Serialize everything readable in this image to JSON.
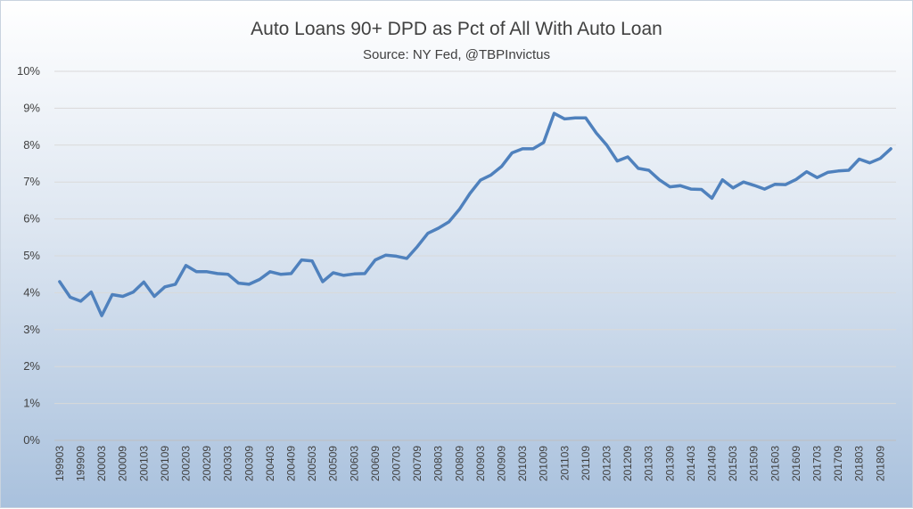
{
  "chart_data": {
    "type": "line",
    "title": "Auto Loans 90+ DPD as Pct of All With Auto Loan",
    "subtitle": "Source: NY Fed, @TBPInvictus",
    "xlabel": "",
    "ylabel": "",
    "ylim": [
      0,
      10
    ],
    "yticks": [
      "0%",
      "1%",
      "2%",
      "3%",
      "4%",
      "5%",
      "6%",
      "7%",
      "8%",
      "9%",
      "10%"
    ],
    "xticks": [
      "199903",
      "199909",
      "200003",
      "200009",
      "200103",
      "200109",
      "200203",
      "200209",
      "200303",
      "200309",
      "200403",
      "200409",
      "200503",
      "200509",
      "200603",
      "200609",
      "200703",
      "200709",
      "200803",
      "200809",
      "200903",
      "200909",
      "201003",
      "201009",
      "201103",
      "201109",
      "201203",
      "201209",
      "201303",
      "201309",
      "201403",
      "201409",
      "201503",
      "201509",
      "201603",
      "201609",
      "201703",
      "201709",
      "201803",
      "201809"
    ],
    "grid": true,
    "legend": "none",
    "colors": {
      "line": "#4f81bd",
      "grid": "#d9d9d9"
    },
    "series": [
      {
        "x": [
          "199903",
          "199906",
          "199909",
          "199912",
          "200003",
          "200006",
          "200009",
          "200012",
          "200103",
          "200106",
          "200109",
          "200112",
          "200203",
          "200206",
          "200209",
          "200212",
          "200303",
          "200306",
          "200309",
          "200312",
          "200403",
          "200406",
          "200409",
          "200412",
          "200503",
          "200506",
          "200509",
          "200512",
          "200603",
          "200606",
          "200609",
          "200612",
          "200703",
          "200706",
          "200709",
          "200712",
          "200803",
          "200806",
          "200809",
          "200812",
          "200903",
          "200906",
          "200909",
          "200912",
          "201003",
          "201006",
          "201009",
          "201012",
          "201103",
          "201106",
          "201109",
          "201112",
          "201203",
          "201206",
          "201209",
          "201212",
          "201303",
          "201306",
          "201309",
          "201312",
          "201403",
          "201406",
          "201409",
          "201412",
          "201503",
          "201506",
          "201509",
          "201512",
          "201603",
          "201606",
          "201609",
          "201612",
          "201703",
          "201706",
          "201709",
          "201712",
          "201803",
          "201806",
          "201809",
          "201812"
        ],
        "values": [
          4.3,
          3.88,
          3.77,
          4.02,
          3.38,
          3.95,
          3.9,
          4.02,
          4.29,
          3.9,
          4.16,
          4.23,
          4.74,
          4.57,
          4.57,
          4.52,
          4.5,
          4.26,
          4.23,
          4.36,
          4.57,
          4.5,
          4.52,
          4.89,
          4.86,
          4.3,
          4.54,
          4.47,
          4.51,
          4.52,
          4.89,
          5.02,
          4.99,
          4.93,
          5.25,
          5.61,
          5.75,
          5.92,
          6.26,
          6.69,
          7.05,
          7.19,
          7.42,
          7.79,
          7.9,
          7.9,
          8.07,
          8.86,
          8.71,
          8.74,
          8.74,
          8.33,
          8.0,
          7.57,
          7.68,
          7.37,
          7.32,
          7.06,
          6.87,
          6.9,
          6.81,
          6.8,
          6.56,
          7.06,
          6.84,
          7.0,
          6.91,
          6.81,
          6.94,
          6.93,
          7.07,
          7.28,
          7.12,
          7.26,
          7.3,
          7.32,
          7.62,
          7.52,
          7.64,
          7.9
        ]
      }
    ]
  }
}
